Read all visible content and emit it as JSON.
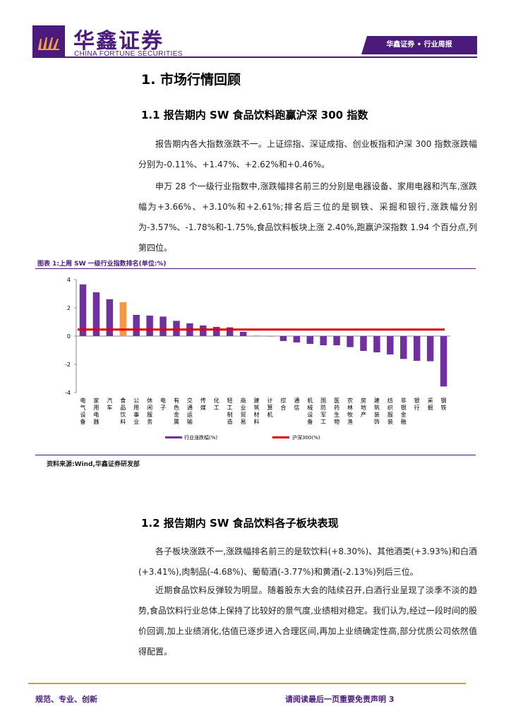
{
  "header": {
    "brand_cn": "华鑫证券",
    "brand_en": "CHINA FORTUNE SECURITIES",
    "tab": "华鑫证券 • 行业周报",
    "logo_icon": "brand-logo-icon",
    "brand_color": "#4b1a7a"
  },
  "section1": {
    "title": "1.  市场行情回顾",
    "sub1_title": "1.1  报告期内 SW 食品饮料跑赢沪深 300 指数",
    "para1": "报告期内各大指数涨跌不一。上证综指、深证成指、创业板指和沪深 300 指数涨跌幅分别为-0.11%、+1.47%、+2.62%和+0.46%。",
    "para2": "申万 28 个一级行业指数中,涨跌幅排名前三的分别是电器设备、家用电器和汽车,涨跌幅为+3.66%、+3.10%和+2.61%;排名后三位的是钢铁、采掘和银行,涨跌幅分别为-3.57%、-1.78%和-1.75%,食品饮料板块上涨 2.40%,跑赢沪深指数 1.94 个百分点,列第四位。"
  },
  "figure": {
    "caption": "图表 1:上周 SW 一级行业指数排名(单位:%)",
    "source": "资料来源:Wind,华鑫证券研发部"
  },
  "chart_data": {
    "type": "bar",
    "categories": [
      "电气设备",
      "家用电器",
      "汽车",
      "食品饮料",
      "公用事业",
      "休闲服务",
      "电子",
      "有色金属",
      "交通运输",
      "传媒",
      "化工",
      "轻工制造",
      "商业贸易",
      "建筑材料",
      "计算机",
      "综合",
      "通信",
      "机械设备",
      "国防军工",
      "医药生物",
      "农林牧渔",
      "房地产",
      "建筑装饰",
      "纺织服装",
      "非银金融",
      "银行",
      "采掘",
      "钢铁"
    ],
    "category_labels": [
      [
        "电",
        "气",
        "设",
        "备"
      ],
      [
        "家",
        "用",
        "电",
        "器"
      ],
      [
        "汽",
        "车"
      ],
      [
        "食",
        "品",
        "饮",
        "料"
      ],
      [
        "公",
        "用",
        "事",
        "业"
      ],
      [
        "休",
        "闲",
        "服",
        "务"
      ],
      [
        "电",
        "子"
      ],
      [
        "有",
        "色",
        "金",
        "属"
      ],
      [
        "交",
        "通",
        "运",
        "输"
      ],
      [
        "传",
        "媒"
      ],
      [
        "化",
        "工"
      ],
      [
        "轻",
        "工",
        "制",
        "造"
      ],
      [
        "商",
        "业",
        "贸",
        "易"
      ],
      [
        "建",
        "筑",
        "材",
        "料"
      ],
      [
        "计",
        "算",
        "机"
      ],
      [
        "综",
        "合"
      ],
      [
        "通",
        "信"
      ],
      [
        "机",
        "械",
        "设",
        "备"
      ],
      [
        "国",
        "防",
        "军",
        "工"
      ],
      [
        "医",
        "药",
        "生",
        "物"
      ],
      [
        "农",
        "林",
        "牧",
        "渔"
      ],
      [
        "房",
        "地",
        "产"
      ],
      [
        "建",
        "筑",
        "装",
        "饰"
      ],
      [
        "纺",
        "织",
        "服",
        "装"
      ],
      [
        "非",
        "银",
        "金",
        "融"
      ],
      [
        "银",
        "行"
      ],
      [
        "采",
        "掘"
      ],
      [
        "钢",
        "铁"
      ]
    ],
    "series": [
      {
        "name": "行业涨跌幅(%)",
        "values": [
          3.66,
          3.1,
          2.61,
          2.4,
          1.5,
          1.45,
          1.38,
          1.08,
          0.9,
          0.75,
          0.65,
          0.62,
          0.3,
          0.02,
          0.0,
          -0.35,
          -0.45,
          -0.55,
          -0.65,
          -0.65,
          -0.78,
          -1.05,
          -1.15,
          -1.3,
          -1.62,
          -1.75,
          -1.78,
          -3.57
        ],
        "color": "#7030a0",
        "highlight_index": 3,
        "highlight_color": "#f79646"
      },
      {
        "name": "沪深300(%)",
        "type": "line",
        "value": 0.46,
        "color": "#e00000"
      }
    ],
    "ylim": [
      -4,
      4
    ],
    "yticks": [
      "4",
      "2",
      "0",
      "-2",
      "-4"
    ],
    "legend_position": "bottom-center",
    "grid": false
  },
  "section2": {
    "sub2_title": "1.2  报告期内 SW 食品饮料各子板块表现",
    "para1": "各子板块涨跌不一,涨跌幅排名前三的是软饮料(+8.30%)、其他酒类(+3.93%)和白酒(+3.41%),肉制品(-4.68%)、葡萄酒(-3.77%)和黄酒(-2.13%)列后三位。",
    "para2": "近期食品饮料反弹较为明显。随着股东大会的陆续召开,白酒行业呈现了淡季不淡的趋势,食品饮料行业总体上保持了比较好的景气度,业绩相对稳定。我们认为,经过一段时间的股价回调,加上业绩消化,估值已逐步进入合理区间,再加上业绩确定性高,部分优质公司依然值得配置。"
  },
  "footer": {
    "left": "规范、专业、创新",
    "right": "请阅读最后一页重要免责声明 3"
  }
}
